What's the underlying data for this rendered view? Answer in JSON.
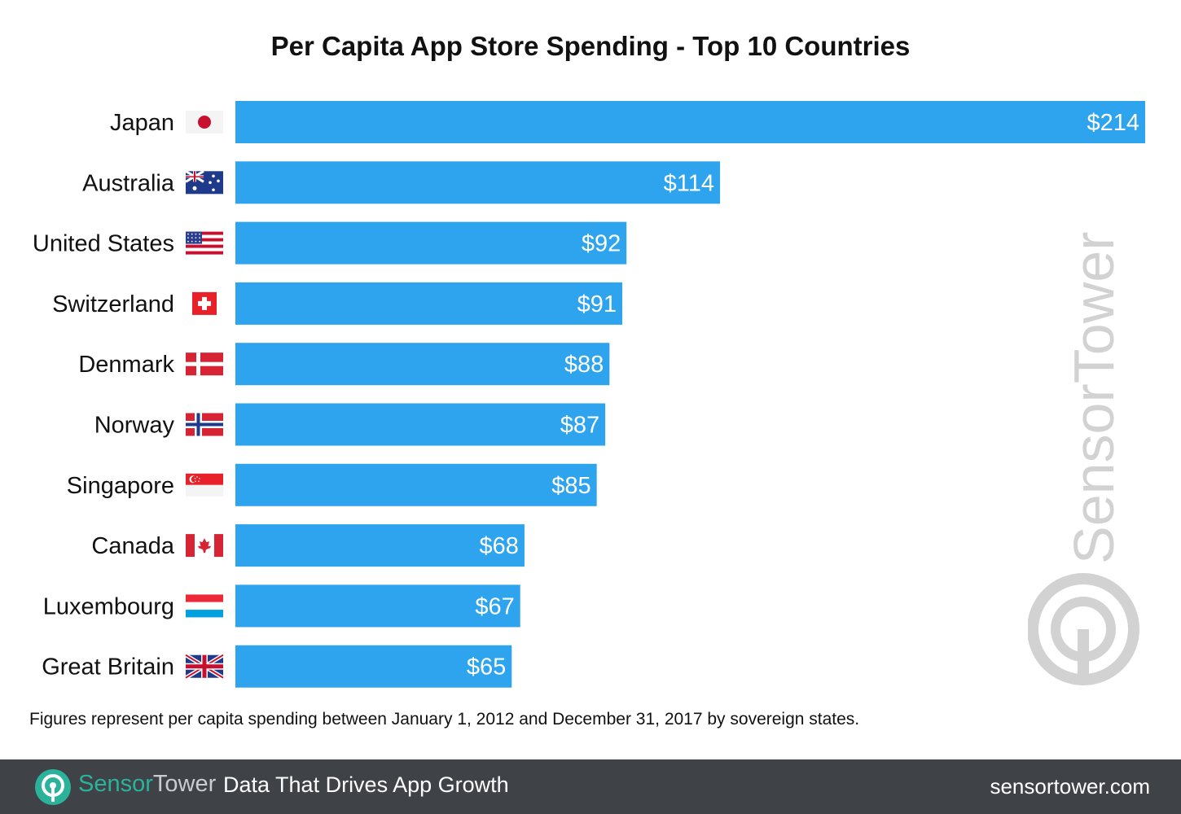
{
  "chart_data": {
    "type": "bar",
    "orientation": "horizontal",
    "title": "Per Capita App Store Spending - Top 10 Countries",
    "categories": [
      "Japan",
      "Australia",
      "United States",
      "Switzerland",
      "Denmark",
      "Norway",
      "Singapore",
      "Canada",
      "Luxembourg",
      "Great Britain"
    ],
    "flags": [
      "flag-japan",
      "flag-australia",
      "flag-united-states",
      "flag-switzerland",
      "flag-denmark",
      "flag-norway",
      "flag-singapore",
      "flag-canada",
      "flag-luxembourg",
      "flag-great-britain"
    ],
    "values": [
      214,
      114,
      92,
      91,
      88,
      87,
      85,
      68,
      67,
      65
    ],
    "value_labels": [
      "$214",
      "$114",
      "$92",
      "$91",
      "$88",
      "$87",
      "$85",
      "$68",
      "$67",
      "$65"
    ],
    "xlim": [
      0,
      214
    ],
    "grid": false,
    "bar_color": "#2ea3ee"
  },
  "footnote": "Figures represent per capita spending between January 1, 2012 and December 31, 2017 by sovereign states.",
  "watermark": {
    "text": "SensorTower",
    "color": "#d0d0d0"
  },
  "footer": {
    "brand_part1": "Sensor",
    "brand_part2": "Tower",
    "tagline": "Data That Drives App Growth",
    "url": "sensortower.com",
    "background": "#3f4247",
    "accent": "#2bb29b"
  }
}
